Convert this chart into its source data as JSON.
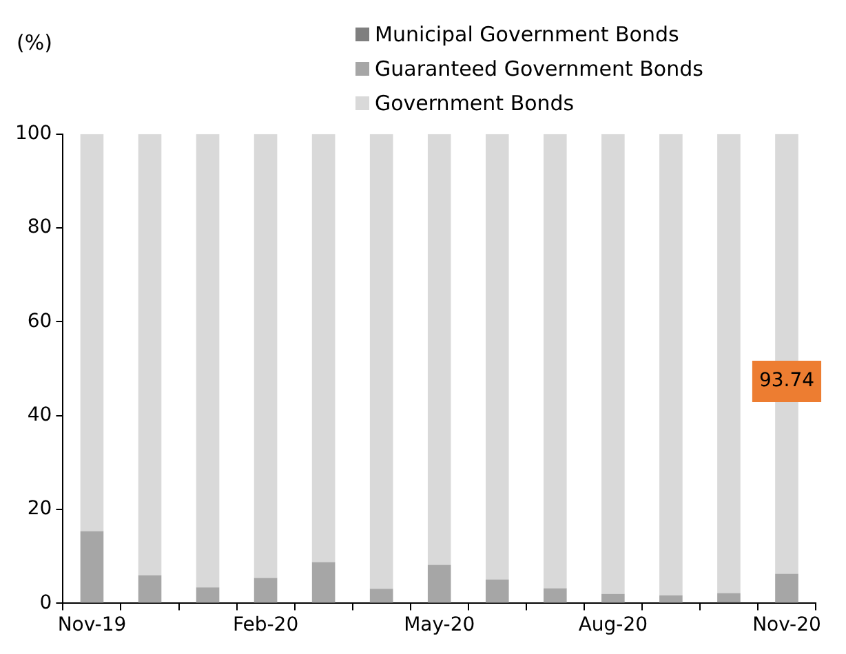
{
  "chart_data": {
    "type": "bar",
    "stacked": true,
    "ylabel": "(%)",
    "categories": [
      "Nov-19",
      null,
      null,
      "Feb-20",
      null,
      null,
      "May-20",
      null,
      null,
      "Aug-20",
      null,
      null,
      "Nov-20"
    ],
    "ylim": [
      0,
      100
    ],
    "yticks": [
      0,
      20,
      40,
      60,
      80,
      100
    ],
    "grid": false,
    "legend": "top",
    "series": [
      {
        "name": "Municipal Government Bonds",
        "color": "#7f7f7f",
        "values": [
          null,
          null,
          null,
          null,
          null,
          null,
          null,
          null,
          null,
          null,
          null,
          0.4,
          null
        ]
      },
      {
        "name": "Guaranteed Government Bonds",
        "color": "#a6a6a6",
        "values": [
          15.4,
          6.0,
          3.4,
          5.4,
          8.8,
          3.1,
          8.2,
          5.1,
          3.2,
          2.0,
          1.7,
          1.8,
          6.3
        ]
      },
      {
        "name": "Government Bonds",
        "color": "#d9d9d9",
        "values": [
          84.6,
          94.0,
          96.6,
          94.6,
          91.2,
          96.9,
          91.8,
          94.9,
          96.8,
          98.0,
          98.3,
          97.8,
          93.74
        ],
        "value_labels": [
          null,
          null,
          null,
          null,
          null,
          null,
          null,
          null,
          null,
          null,
          null,
          null,
          "93.74"
        ]
      }
    ]
  }
}
